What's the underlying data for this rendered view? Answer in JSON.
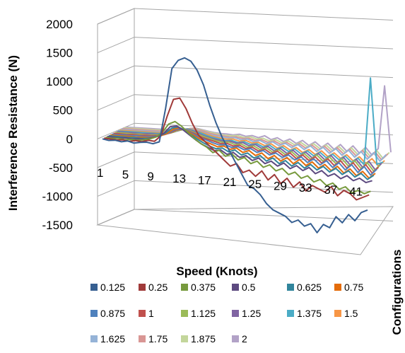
{
  "chart_data": {
    "type": "line",
    "variant": "3d-line",
    "title": "",
    "ylabel": "Interference Resistance (N)",
    "xlabel": "Speed (Knots)",
    "zlabel": "Configurations",
    "ylim": [
      -1500,
      2000
    ],
    "yticks": [
      "2000",
      "1500",
      "1000",
      "500",
      "0",
      "-500",
      "-1000",
      "-1500"
    ],
    "x": [
      1,
      2,
      3,
      4,
      5,
      6,
      7,
      8,
      9,
      10,
      11,
      12,
      13,
      14,
      15,
      16,
      17,
      18,
      19,
      20,
      21,
      22,
      23,
      24,
      25,
      26,
      27,
      28,
      29,
      30,
      31,
      32,
      33,
      34,
      35,
      36,
      37,
      38,
      39,
      40,
      41,
      42,
      43
    ],
    "xticks": [
      "1",
      "5",
      "9",
      "13",
      "17",
      "21",
      "25",
      "29",
      "33",
      "37",
      "41"
    ],
    "grid": true,
    "legend_position": "bottom",
    "series": [
      {
        "name": "0.125",
        "color": "#365f91",
        "values": [
          0,
          -20,
          -10,
          -30,
          -10,
          -40,
          -20,
          -10,
          -30,
          10,
          600,
          1300,
          1450,
          1500,
          1450,
          1300,
          1050,
          700,
          400,
          150,
          -50,
          -250,
          -450,
          -650,
          -700,
          -800,
          -950,
          -1050,
          -1100,
          -1150,
          -1250,
          -1200,
          -1300,
          -1250,
          -1400,
          -1250,
          -1300,
          -1100,
          -1200,
          -1050,
          -1150,
          -1000,
          -950
        ]
      },
      {
        "name": "0.25",
        "color": "#a03a39",
        "values": [
          0,
          -10,
          -20,
          -10,
          -30,
          -10,
          -20,
          10,
          0,
          100,
          450,
          750,
          780,
          600,
          350,
          150,
          50,
          -50,
          -150,
          -250,
          -350,
          -300,
          -450,
          -400,
          -500,
          -400,
          -550,
          -450,
          -600,
          -500,
          -650,
          -550,
          -700,
          -600,
          -650,
          -700,
          -600,
          -750,
          -650,
          -700,
          -800,
          -750,
          -700
        ]
      },
      {
        "name": "0.375",
        "color": "#779a3d",
        "values": [
          0,
          -10,
          -5,
          -20,
          -10,
          -15,
          -5,
          20,
          60,
          150,
          300,
          350,
          280,
          180,
          80,
          0,
          -60,
          -150,
          -100,
          -200,
          -150,
          -250,
          -200,
          -300,
          -250,
          -350,
          -300,
          -400,
          -350,
          -450,
          -400,
          -500,
          -450,
          -550,
          -500,
          -600,
          -550,
          -650,
          -600,
          -700,
          -650,
          -700,
          -650
        ]
      },
      {
        "name": "0.5",
        "color": "#5d4a80",
        "values": [
          0,
          -5,
          -10,
          -5,
          -15,
          -5,
          -10,
          20,
          60,
          120,
          240,
          260,
          200,
          120,
          40,
          -30,
          -80,
          -130,
          -110,
          -180,
          -140,
          -220,
          -180,
          -260,
          -210,
          -300,
          -250,
          -330,
          -270,
          -360,
          -300,
          -380,
          -320,
          -420,
          -360,
          -450,
          -400,
          -480,
          -420,
          -500,
          -450,
          -520,
          -480
        ]
      },
      {
        "name": "0.625",
        "color": "#31859c",
        "values": [
          0,
          -5,
          -5,
          -10,
          -5,
          -10,
          -5,
          15,
          50,
          110,
          200,
          230,
          180,
          110,
          40,
          -20,
          -70,
          -110,
          -90,
          -150,
          -110,
          -190,
          -150,
          -230,
          -180,
          -270,
          -210,
          -300,
          -240,
          -330,
          -260,
          -350,
          -280,
          -370,
          -300,
          -390,
          -320,
          -420,
          -350,
          -450,
          -380,
          -480,
          -400
        ]
      },
      {
        "name": "0.75",
        "color": "#e46c0a",
        "values": [
          0,
          -5,
          -5,
          -5,
          -10,
          -5,
          -5,
          10,
          40,
          90,
          170,
          200,
          160,
          100,
          40,
          -10,
          -50,
          -90,
          -70,
          -120,
          -90,
          -160,
          -120,
          -200,
          -150,
          -240,
          -180,
          -270,
          -200,
          -300,
          -220,
          -320,
          -250,
          -350,
          -280,
          -380,
          -300,
          -410,
          -330,
          -440,
          -360,
          -470,
          -380
        ]
      },
      {
        "name": "0.875",
        "color": "#4f81bd",
        "values": [
          0,
          -5,
          0,
          -5,
          0,
          -5,
          0,
          10,
          40,
          80,
          150,
          170,
          140,
          90,
          40,
          0,
          -40,
          -70,
          -60,
          -100,
          -80,
          -130,
          -100,
          -160,
          -120,
          -190,
          -150,
          -220,
          -170,
          -250,
          -190,
          -280,
          -210,
          -310,
          -230,
          -340,
          -250,
          -370,
          -270,
          -400,
          -290,
          -430,
          -320
        ]
      },
      {
        "name": "1",
        "color": "#c0504d",
        "values": [
          0,
          0,
          -5,
          0,
          -5,
          0,
          0,
          10,
          30,
          70,
          130,
          150,
          120,
          80,
          30,
          0,
          -30,
          -60,
          -50,
          -90,
          -70,
          -120,
          -90,
          -150,
          -110,
          -180,
          -130,
          -210,
          -150,
          -240,
          -170,
          -260,
          -190,
          -290,
          -210,
          -320,
          -230,
          -350,
          -250,
          -380,
          -270,
          -410,
          -300
        ]
      },
      {
        "name": "1.125",
        "color": "#9bbb59",
        "values": [
          0,
          0,
          0,
          -5,
          0,
          -5,
          0,
          10,
          30,
          60,
          110,
          130,
          110,
          70,
          30,
          0,
          -30,
          -50,
          -40,
          -80,
          -60,
          -110,
          -80,
          -140,
          -100,
          -170,
          -120,
          -200,
          -140,
          -230,
          -160,
          -250,
          -170,
          -270,
          -190,
          -300,
          -210,
          -330,
          -230,
          -360,
          -250,
          -390,
          -280
        ]
      },
      {
        "name": "1.25",
        "color": "#8064a2",
        "values": [
          0,
          0,
          0,
          0,
          -5,
          0,
          0,
          5,
          25,
          55,
          100,
          120,
          100,
          60,
          20,
          -10,
          -30,
          -50,
          -40,
          -70,
          -50,
          -100,
          -70,
          -130,
          -90,
          -160,
          -110,
          -190,
          -130,
          -220,
          -150,
          -240,
          -160,
          -260,
          -180,
          -290,
          -200,
          -320,
          -220,
          -350,
          -240,
          -380,
          -260
        ]
      },
      {
        "name": "1.375",
        "color": "#4bacc6",
        "values": [
          0,
          0,
          0,
          0,
          0,
          0,
          0,
          5,
          20,
          50,
          90,
          110,
          90,
          60,
          20,
          -10,
          -30,
          -50,
          -40,
          -70,
          -50,
          -90,
          -70,
          -120,
          -80,
          -150,
          -100,
          -170,
          -120,
          -200,
          -140,
          -220,
          -150,
          -240,
          -170,
          -260,
          -190,
          -290,
          -210,
          -320,
          1200,
          -300,
          -250
        ]
      },
      {
        "name": "1.5",
        "color": "#f79646",
        "values": [
          0,
          0,
          0,
          0,
          0,
          0,
          0,
          5,
          20,
          45,
          80,
          100,
          80,
          50,
          20,
          -10,
          -30,
          -40,
          -30,
          -60,
          -40,
          -80,
          -60,
          -110,
          -70,
          -140,
          -90,
          -160,
          -110,
          -190,
          -130,
          -210,
          -140,
          -230,
          -160,
          -250,
          -180,
          -280,
          -200,
          -310,
          -220,
          -340,
          -240
        ]
      },
      {
        "name": "1.625",
        "color": "#95b3d7",
        "values": [
          0,
          0,
          0,
          0,
          0,
          0,
          0,
          5,
          15,
          40,
          70,
          90,
          70,
          40,
          10,
          -10,
          -20,
          -30,
          -20,
          -50,
          -30,
          -70,
          -40,
          -90,
          -50,
          -110,
          -60,
          -130,
          -70,
          -150,
          -80,
          -170,
          -90,
          -190,
          -100,
          -210,
          -110,
          -230,
          -120,
          -250,
          -130,
          -270,
          -150
        ]
      },
      {
        "name": "1.75",
        "color": "#d99694",
        "values": [
          0,
          0,
          0,
          0,
          0,
          0,
          0,
          5,
          15,
          35,
          60,
          80,
          60,
          40,
          10,
          -10,
          -20,
          -30,
          -20,
          -40,
          -30,
          -60,
          -40,
          -80,
          -50,
          -100,
          -60,
          -120,
          -70,
          -140,
          -80,
          -160,
          -90,
          -180,
          -100,
          -200,
          -110,
          -220,
          -120,
          -240,
          -130,
          -260,
          -150
        ]
      },
      {
        "name": "1.875",
        "color": "#c3d69b",
        "values": [
          0,
          0,
          0,
          0,
          0,
          0,
          0,
          5,
          10,
          30,
          50,
          70,
          50,
          30,
          10,
          -10,
          -20,
          -20,
          -10,
          -40,
          -20,
          -50,
          -30,
          -70,
          -40,
          -90,
          -50,
          -110,
          -60,
          -130,
          -70,
          -150,
          -80,
          -170,
          -90,
          -190,
          -100,
          -210,
          -110,
          -230,
          -120,
          -250,
          -140
        ]
      },
      {
        "name": "2",
        "color": "#b2a2c7",
        "values": [
          0,
          0,
          0,
          0,
          0,
          0,
          0,
          5,
          10,
          25,
          40,
          60,
          40,
          20,
          0,
          -10,
          -10,
          -20,
          0,
          -30,
          -10,
          -40,
          0,
          -60,
          -20,
          -80,
          -30,
          -100,
          -40,
          -120,
          -50,
          -140,
          -60,
          -160,
          -70,
          -180,
          -80,
          -200,
          -90,
          -220,
          -100,
          1000,
          -150
        ]
      }
    ]
  }
}
